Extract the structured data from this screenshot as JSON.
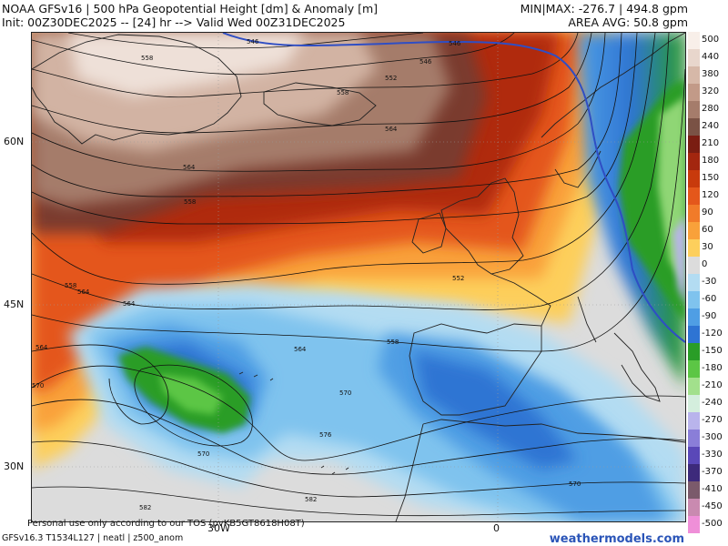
{
  "header": {
    "line1": "NOAA GFSv16 | 500 hPa Geopotential Height [dm] & Anomaly [m]",
    "line2": "Init: 00Z30DEC2025 -- [24] hr --> Valid Wed 00Z31DEC2025",
    "minmax": "MIN|MAX: -276.7 | 494.8 gpm",
    "area_avg": "AREA AVG: 50.8 gpm"
  },
  "map": {
    "lat_labels": [
      "60N",
      "45N",
      "30N"
    ],
    "lon_labels": [
      "30W",
      "0"
    ],
    "height_contour_labels": [
      "546",
      "546",
      "546",
      "552",
      "552",
      "558",
      "558",
      "558",
      "558",
      "558",
      "564",
      "564",
      "564",
      "564",
      "564",
      "564",
      "570",
      "570",
      "570",
      "570",
      "576",
      "582",
      "582"
    ]
  },
  "colorbar": {
    "labels": [
      "500",
      "440",
      "380",
      "320",
      "280",
      "240",
      "210",
      "180",
      "150",
      "120",
      "90",
      "60",
      "30",
      "0",
      "-30",
      "-60",
      "-90",
      "-120",
      "-150",
      "-180",
      "-210",
      "-240",
      "-270",
      "-300",
      "-330",
      "-370",
      "-410",
      "-450",
      "-500"
    ],
    "colors": [
      "#f8efe9",
      "#e8d6cc",
      "#d6b8a8",
      "#c29a88",
      "#a57c6b",
      "#7a5245",
      "#7a1d12",
      "#a3260f",
      "#c83a0c",
      "#e4571b",
      "#f17b29",
      "#f9a13a",
      "#fdcf5c",
      "#dcdcdc",
      "#b3dcf2",
      "#7fc3ee",
      "#4f9ee4",
      "#2e74d3",
      "#2a9d27",
      "#5cc645",
      "#a2e08c",
      "#d4eedd",
      "#b9b4ec",
      "#8a7ed8",
      "#5a48b8",
      "#3d2a7b",
      "#7b5a6b",
      "#c98ab0",
      "#ef8fd8"
    ]
  },
  "footer": {
    "note": "Personal use only according to our TOS (pvKB5GT8618H08T)",
    "model": "GFSv16.3 T1534L127 | neatl | z500_anom",
    "brand": "weathermodels.com"
  }
}
